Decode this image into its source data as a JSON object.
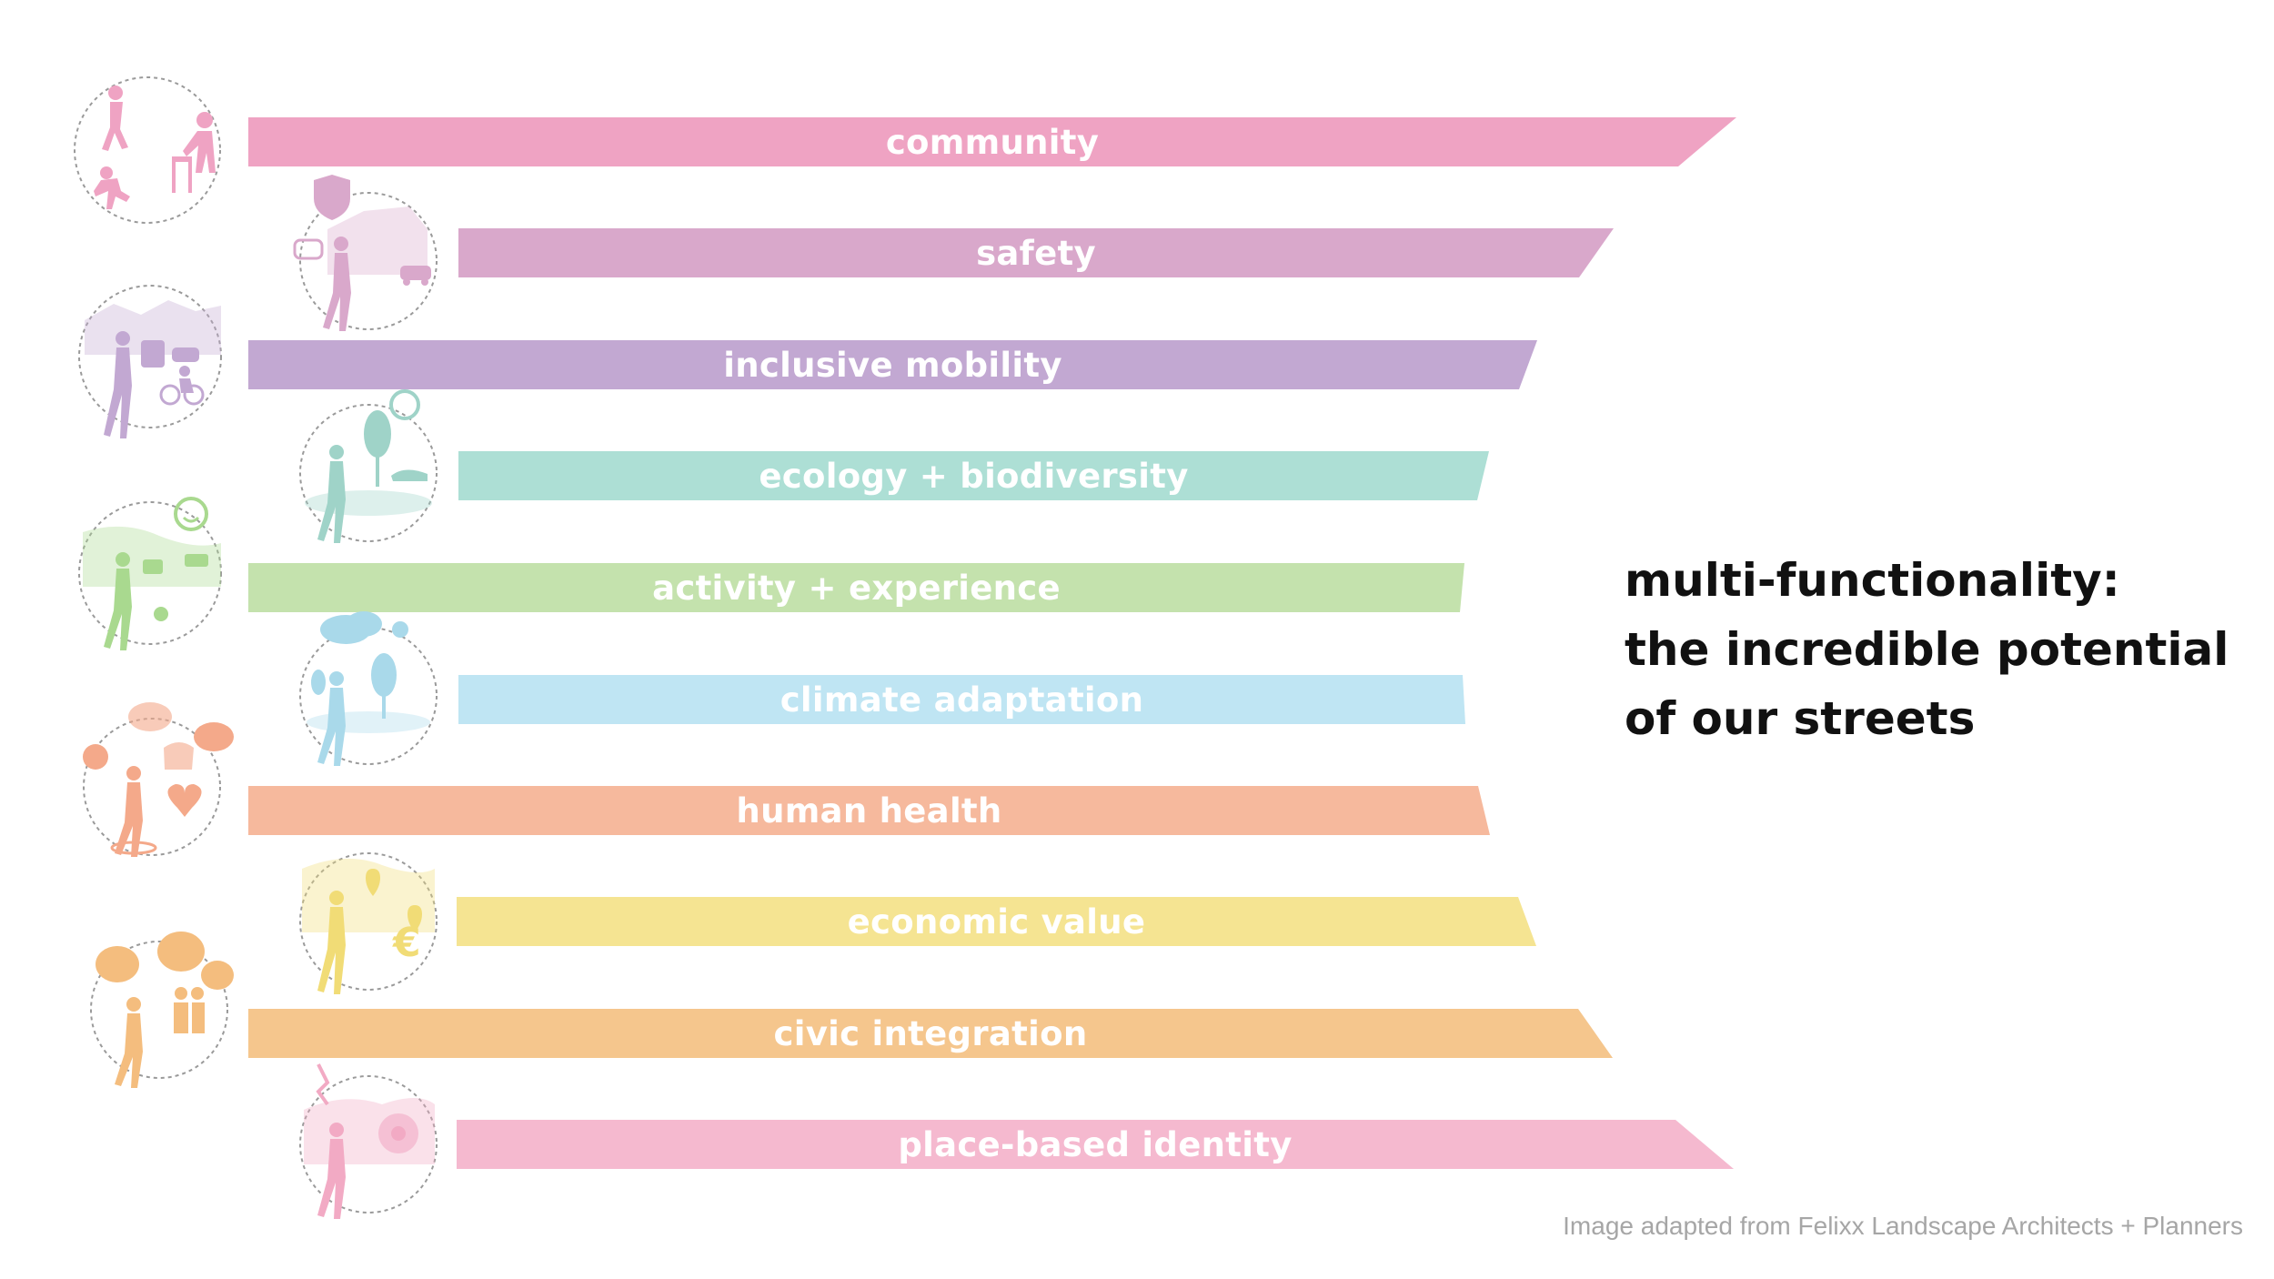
{
  "bands": [
    {
      "label": "community",
      "color": "#efa3c3",
      "edge": "outward"
    },
    {
      "label": "safety",
      "color": "#d9a8cb",
      "edge": "outward"
    },
    {
      "label": "inclusive mobility",
      "color": "#c2a8d2",
      "edge": "outward"
    },
    {
      "label": "ecology + biodiversity",
      "color": "#addfd5",
      "edge": "outward"
    },
    {
      "label": "activity + experience",
      "color": "#c4e2ad",
      "edge": "outward"
    },
    {
      "label": "climate adaptation",
      "color": "#bfe5f3",
      "edge": "inward"
    },
    {
      "label": "human health",
      "color": "#f6b99d",
      "edge": "inward"
    },
    {
      "label": "economic value",
      "color": "#f5e492",
      "edge": "inward"
    },
    {
      "label": "civic integration",
      "color": "#f5c68d",
      "edge": "inward"
    },
    {
      "label": "place-based identity",
      "color": "#f5b9cf",
      "edge": "inward"
    }
  ],
  "icons": [
    {
      "name": "community-icon",
      "color": "#efa3c3"
    },
    {
      "name": "safety-icon",
      "color": "#d9a8cb"
    },
    {
      "name": "inclusive-mobility-icon",
      "color": "#c2a8d2"
    },
    {
      "name": "ecology-biodiversity-icon",
      "color": "#9fd3c8"
    },
    {
      "name": "activity-experience-icon",
      "color": "#a9d98f"
    },
    {
      "name": "climate-adaptation-icon",
      "color": "#a9d9ea"
    },
    {
      "name": "human-health-icon",
      "color": "#f4a98a"
    },
    {
      "name": "economic-value-icon",
      "color": "#f1dc76"
    },
    {
      "name": "civic-integration-icon",
      "color": "#f4bd7e"
    },
    {
      "name": "place-based-identity-icon",
      "color": "#f2aac4"
    }
  ],
  "headline": [
    "multi-functionality:",
    "the incredible potential",
    "of our streets"
  ],
  "credit": "Image adapted from Felixx Landscape Architects + Planners"
}
